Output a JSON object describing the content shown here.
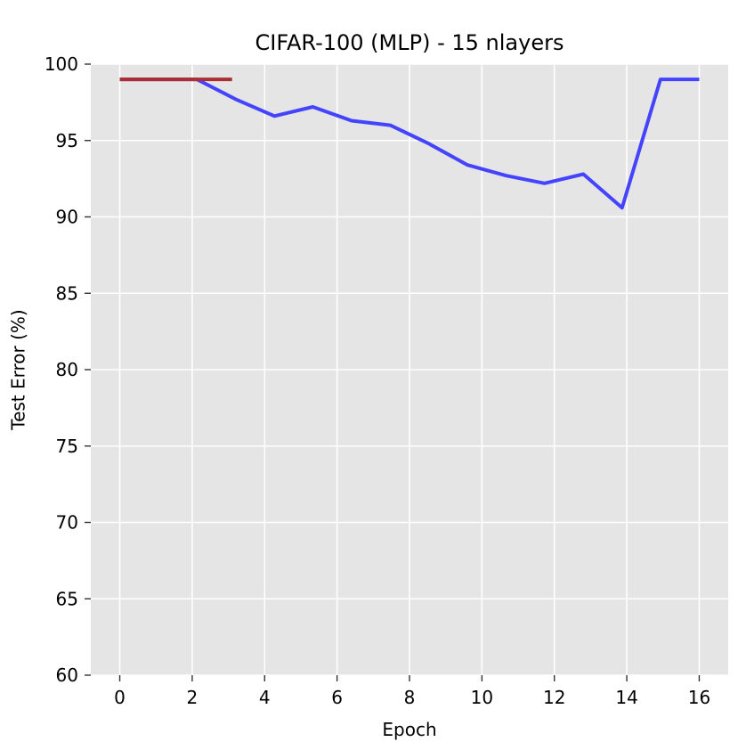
{
  "chart_data": {
    "type": "line",
    "title": "CIFAR-100 (MLP) - 15 nlayers",
    "xlabel": "Epoch",
    "ylabel": "Test Error (%)",
    "xlim": [
      -0.8,
      16.8
    ],
    "ylim": [
      60,
      100
    ],
    "xticks": [
      0,
      2,
      4,
      6,
      8,
      10,
      12,
      14,
      16
    ],
    "yticks": [
      60,
      65,
      70,
      75,
      80,
      85,
      90,
      95,
      100
    ],
    "grid": true,
    "background_color": "#e5e5e5",
    "grid_color": "#ffffff",
    "series": [
      {
        "color": "#4444ff",
        "x": [
          0,
          1.07,
          2.13,
          3.2,
          4.27,
          5.33,
          6.4,
          7.47,
          8.53,
          9.6,
          10.67,
          11.73,
          12.8,
          13.87,
          14.93,
          16
        ],
        "y": [
          99,
          99,
          99,
          97.7,
          96.6,
          97.2,
          96.3,
          96.0,
          94.8,
          93.4,
          92.7,
          92.2,
          92.8,
          90.6,
          99,
          99
        ]
      },
      {
        "color": "#aa2e33",
        "x": [
          0,
          3.1
        ],
        "y": [
          99,
          99
        ]
      }
    ]
  }
}
